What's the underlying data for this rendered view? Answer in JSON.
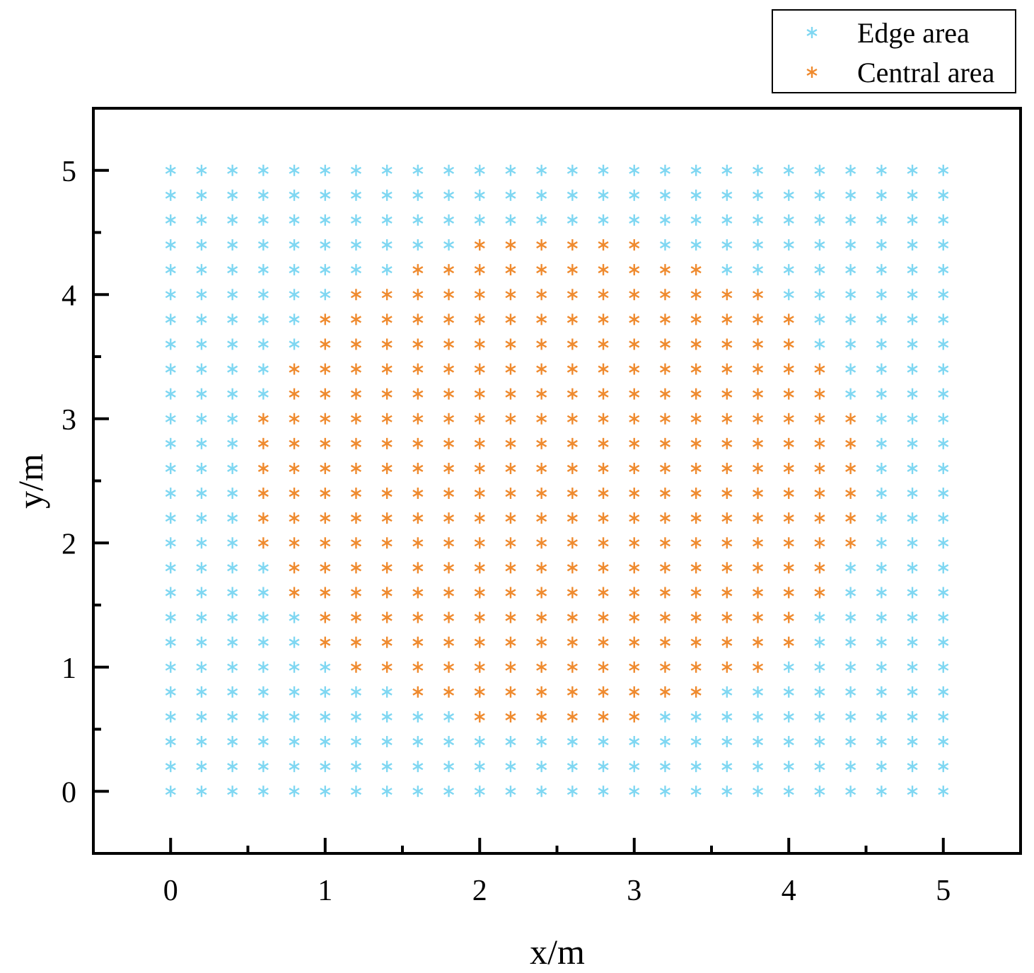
{
  "chart_data": {
    "type": "scatter",
    "xlabel": "x/m",
    "ylabel": "y/m",
    "xlim": [
      -0.5,
      5.5
    ],
    "ylim": [
      -0.5,
      5.5
    ],
    "xticks": [
      0,
      1,
      2,
      3,
      4,
      5
    ],
    "yticks": [
      0,
      1,
      2,
      3,
      4,
      5
    ],
    "xtick_labels": [
      "0",
      "1",
      "2",
      "3",
      "4",
      "5"
    ],
    "ytick_labels": [
      "0",
      "1",
      "2",
      "3",
      "4",
      "5"
    ],
    "grid": false,
    "legend_position": "top-right outside plot",
    "marker": "asterisk",
    "grid_step": 0.2,
    "grid_range": [
      0,
      5
    ],
    "series": [
      {
        "name": "Edge area",
        "color": "#7fd7f2",
        "points": "all grid points (0 to 5 step 0.2 in x and y) not in Central area"
      },
      {
        "name": "Central area",
        "color": "#ef8a2e",
        "rows": [
          {
            "y": 0.6,
            "x_from": 2.0,
            "x_to": 3.0
          },
          {
            "y": 0.8,
            "x_from": 1.6,
            "x_to": 3.4
          },
          {
            "y": 1.0,
            "x_from": 1.2,
            "x_to": 3.8
          },
          {
            "y": 1.2,
            "x_from": 1.0,
            "x_to": 4.0
          },
          {
            "y": 1.4,
            "x_from": 1.0,
            "x_to": 4.0
          },
          {
            "y": 1.6,
            "x_from": 0.8,
            "x_to": 4.2
          },
          {
            "y": 1.8,
            "x_from": 0.8,
            "x_to": 4.2
          },
          {
            "y": 2.0,
            "x_from": 0.6,
            "x_to": 4.4
          },
          {
            "y": 2.2,
            "x_from": 0.6,
            "x_to": 4.4
          },
          {
            "y": 2.4,
            "x_from": 0.6,
            "x_to": 4.4
          },
          {
            "y": 2.6,
            "x_from": 0.6,
            "x_to": 4.4
          },
          {
            "y": 2.8,
            "x_from": 0.6,
            "x_to": 4.4
          },
          {
            "y": 3.0,
            "x_from": 0.6,
            "x_to": 4.4
          },
          {
            "y": 3.2,
            "x_from": 0.8,
            "x_to": 4.2
          },
          {
            "y": 3.4,
            "x_from": 0.8,
            "x_to": 4.2
          },
          {
            "y": 3.6,
            "x_from": 1.0,
            "x_to": 4.0
          },
          {
            "y": 3.8,
            "x_from": 1.0,
            "x_to": 4.0
          },
          {
            "y": 4.0,
            "x_from": 1.2,
            "x_to": 3.8
          },
          {
            "y": 4.2,
            "x_from": 1.6,
            "x_to": 3.4
          },
          {
            "y": 4.4,
            "x_from": 2.0,
            "x_to": 3.0
          }
        ]
      }
    ]
  }
}
